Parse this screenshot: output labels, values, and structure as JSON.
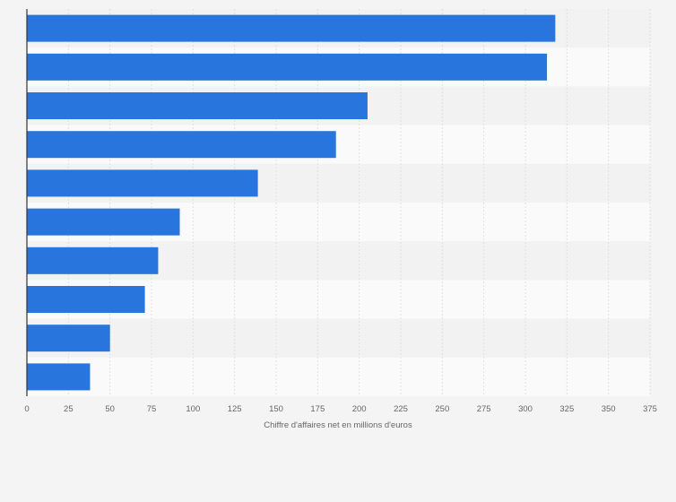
{
  "chart_data": {
    "type": "bar",
    "orientation": "horizontal",
    "title": "",
    "xlabel": "Chiffre d'affaires net en millions d'euros",
    "ylabel": "",
    "categories": [
      "",
      "",
      "",
      "",
      "",
      "",
      "",
      "",
      "",
      ""
    ],
    "values": [
      318,
      313,
      205,
      186,
      139,
      92,
      79,
      71,
      50,
      38
    ],
    "xlim": [
      0,
      375
    ],
    "xticks": [
      "0",
      "25",
      "50",
      "75",
      "100",
      "125",
      "150",
      "175",
      "200",
      "225",
      "250",
      "275",
      "300",
      "325",
      "350",
      "375"
    ],
    "grid": true,
    "legend": "none"
  },
  "colors": {
    "bar": "#2876dd",
    "background": "#f4f4f4",
    "band_light": "#fafafa",
    "band_dark": "#f2f2f2",
    "grid": "#e0e0e0",
    "axis": "#333333",
    "text": "#666666"
  }
}
